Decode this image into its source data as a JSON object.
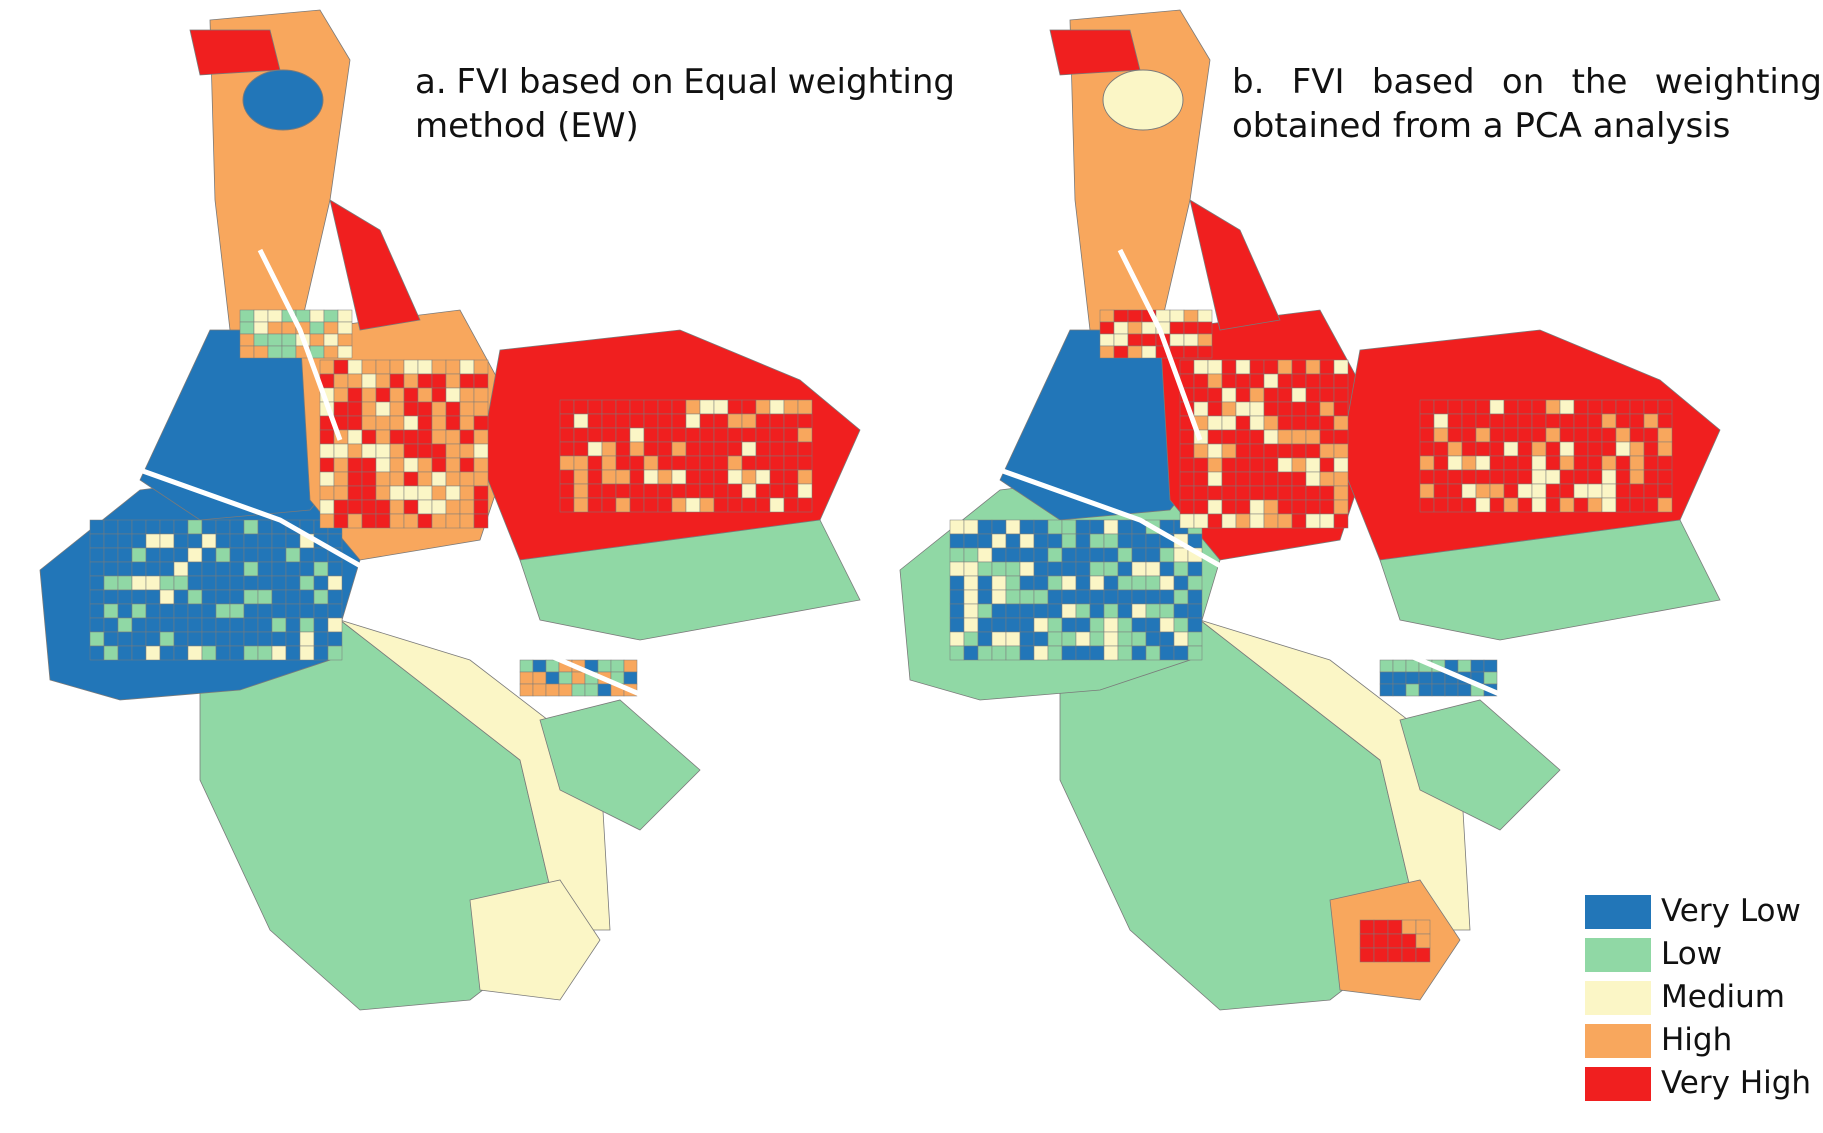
{
  "panels": [
    {
      "id": "a",
      "title_line1_words": [
        "a.",
        "FVI",
        "based",
        "on",
        "Equal",
        "weighting"
      ],
      "title_line2": "method (EW)"
    },
    {
      "id": "b",
      "title_line1_words": [
        "b.",
        "FVI",
        "based",
        "on",
        "the",
        "weighting"
      ],
      "title_line2": "obtained from a PCA analysis"
    }
  ],
  "legend": [
    {
      "label": "Very Low",
      "color": "#2276b8"
    },
    {
      "label": "Low",
      "color": "#90d8a5"
    },
    {
      "label": "Medium",
      "color": "#fbf6c6"
    },
    {
      "label": "High",
      "color": "#f8a75d"
    },
    {
      "label": "Very High",
      "color": "#f01f1f"
    }
  ],
  "colors": {
    "very_low": "#2276b8",
    "low": "#90d8a5",
    "medium": "#fbf6c6",
    "high": "#f8a75d",
    "very_high": "#f01f1f",
    "boundary": "#7a7a7a"
  }
}
